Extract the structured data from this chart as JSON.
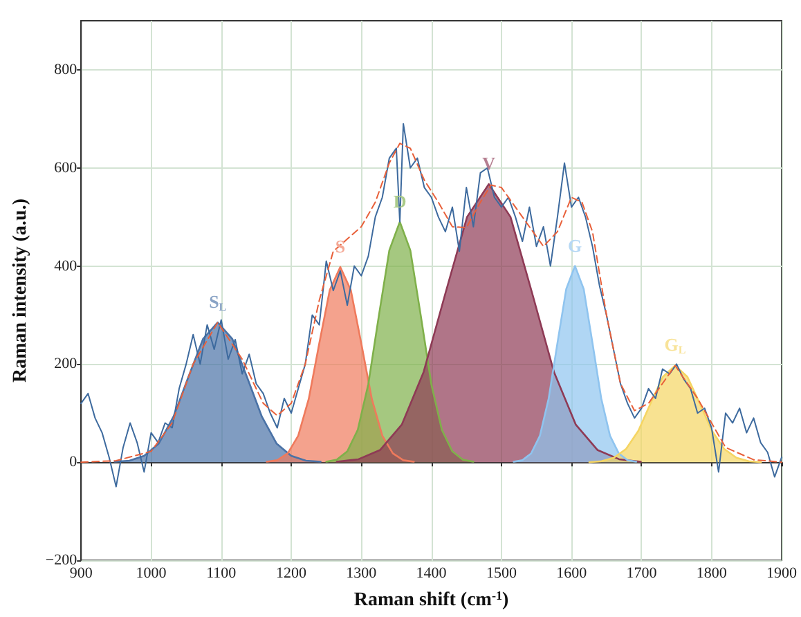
{
  "chart_data": {
    "type": "line",
    "xlabel": "Raman shift (cm$^{-1}$)",
    "ylabel": "Raman intensity (a.u.)",
    "xlim": [
      900,
      1900
    ],
    "xticks": [
      900,
      1000,
      1100,
      1200,
      1300,
      1400,
      1500,
      1600,
      1700,
      1800,
      1900
    ],
    "ylim": [
      -200,
      900
    ],
    "yticks": [
      -200,
      0,
      200,
      400,
      600,
      800
    ],
    "grid": true,
    "marker": "none",
    "series": [
      {
        "color": "#3d6a9e",
        "x": [
          900,
          910,
          920,
          930,
          940,
          950,
          960,
          970,
          980,
          990,
          1000,
          1010,
          1020,
          1030,
          1040,
          1050,
          1060,
          1070,
          1080,
          1090,
          1100,
          1110,
          1120,
          1130,
          1140,
          1150,
          1160,
          1170,
          1180,
          1190,
          1200,
          1210,
          1220,
          1230,
          1240,
          1250,
          1260,
          1270,
          1280,
          1290,
          1300,
          1310,
          1320,
          1330,
          1340,
          1350,
          1355,
          1360,
          1370,
          1380,
          1390,
          1400,
          1410,
          1420,
          1430,
          1440,
          1450,
          1460,
          1470,
          1480,
          1490,
          1500,
          1510,
          1520,
          1530,
          1540,
          1550,
          1560,
          1570,
          1580,
          1590,
          1600,
          1610,
          1620,
          1630,
          1640,
          1650,
          1660,
          1670,
          1680,
          1690,
          1700,
          1710,
          1720,
          1730,
          1740,
          1750,
          1760,
          1770,
          1780,
          1790,
          1800,
          1810,
          1820,
          1830,
          1840,
          1850,
          1860,
          1870,
          1880,
          1890,
          1900
        ],
        "values": [
          120,
          140,
          90,
          60,
          10,
          -50,
          30,
          80,
          40,
          -20,
          60,
          40,
          80,
          70,
          150,
          200,
          260,
          200,
          280,
          230,
          290,
          210,
          250,
          180,
          220,
          160,
          140,
          100,
          70,
          130,
          100,
          150,
          200,
          300,
          280,
          410,
          350,
          390,
          320,
          400,
          380,
          420,
          500,
          540,
          620,
          640,
          490,
          690,
          600,
          620,
          560,
          540,
          500,
          470,
          520,
          430,
          560,
          480,
          590,
          600,
          540,
          520,
          540,
          500,
          450,
          520,
          440,
          480,
          400,
          500,
          610,
          520,
          540,
          500,
          440,
          360,
          300,
          230,
          160,
          120,
          90,
          110,
          150,
          130,
          190,
          180,
          200,
          170,
          150,
          100,
          110,
          70,
          -20,
          100,
          80,
          110,
          60,
          90,
          40,
          20,
          -30,
          10
        ]
      },
      {
        "color": "#e8603a",
        "line_style": "dashed",
        "x": [
          900,
          950,
          1000,
          1030,
          1060,
          1095,
          1130,
          1160,
          1180,
          1200,
          1220,
          1240,
          1260,
          1280,
          1300,
          1320,
          1340,
          1355,
          1370,
          1390,
          1410,
          1430,
          1450,
          1470,
          1485,
          1500,
          1530,
          1560,
          1580,
          1600,
          1615,
          1630,
          1650,
          1670,
          1690,
          1710,
          1748,
          1780,
          1820,
          1860,
          1900
        ],
        "values": [
          0,
          3,
          22,
          80,
          200,
          285,
          210,
          120,
          95,
          120,
          200,
          330,
          430,
          455,
          480,
          530,
          610,
          650,
          640,
          575,
          530,
          480,
          478,
          530,
          565,
          560,
          500,
          440,
          470,
          540,
          530,
          470,
          300,
          160,
          105,
          120,
          197,
          130,
          30,
          5,
          0
        ]
      },
      {
        "type": "area",
        "name": "S$_{L}$",
        "color": "#4a72a6",
        "x": [
          948,
          969,
          990,
          1011,
          1032,
          1053,
          1074,
          1095,
          1116,
          1137,
          1158,
          1179,
          1200,
          1221,
          1242
        ],
        "values": [
          1,
          3,
          13,
          38,
          93,
          173,
          251,
          285,
          251,
          173,
          93,
          38,
          13,
          3,
          1
        ]
      },
      {
        "type": "area",
        "name": "S",
        "color": "#ef7a5c",
        "x": [
          1165,
          1180,
          1195,
          1210,
          1225,
          1240,
          1255,
          1270,
          1285,
          1300,
          1315,
          1330,
          1345,
          1360,
          1375
        ],
        "values": [
          1,
          4,
          18,
          54,
          129,
          242,
          351,
          398,
          351,
          242,
          129,
          54,
          18,
          4,
          1
        ]
      },
      {
        "type": "area",
        "name": "D",
        "color": "#7fb04a",
        "x": [
          1250,
          1265,
          1280,
          1295,
          1310,
          1325,
          1340,
          1355,
          1370,
          1385,
          1400,
          1415,
          1430,
          1445,
          1460
        ],
        "values": [
          1,
          5,
          22,
          66,
          159,
          298,
          432,
          490,
          432,
          298,
          159,
          66,
          22,
          5,
          1
        ]
      },
      {
        "type": "area",
        "name": "V",
        "color": "#8e3a55",
        "x": [
          1265,
          1296,
          1327,
          1358,
          1389,
          1420,
          1451,
          1482,
          1513,
          1544,
          1575,
          1606,
          1637,
          1668,
          1699
        ],
        "values": [
          1,
          6,
          25,
          77,
          184,
          344,
          500,
          567,
          500,
          344,
          184,
          77,
          25,
          6,
          1
        ]
      },
      {
        "type": "area",
        "name": "G",
        "color": "#8fc4ef",
        "x": [
          1517.5,
          1530,
          1542.5,
          1555,
          1567.5,
          1580,
          1592.5,
          1605,
          1617.5,
          1630,
          1642.5,
          1655,
          1667.5,
          1680,
          1692.5
        ],
        "values": [
          1,
          4,
          18,
          54,
          130,
          243,
          353,
          400,
          353,
          243,
          130,
          54,
          18,
          4,
          1
        ]
      },
      {
        "type": "area",
        "name": "G$_{L}$",
        "color": "#f5d563",
        "x": [
          1625.5,
          1643,
          1660.5,
          1678,
          1695.5,
          1713,
          1730.5,
          1748,
          1765.5,
          1783,
          1800.5,
          1818,
          1835.5,
          1853,
          1870.5
        ],
        "values": [
          0,
          2,
          9,
          27,
          64,
          120,
          174,
          197,
          174,
          120,
          64,
          27,
          9,
          2,
          0
        ]
      }
    ]
  }
}
